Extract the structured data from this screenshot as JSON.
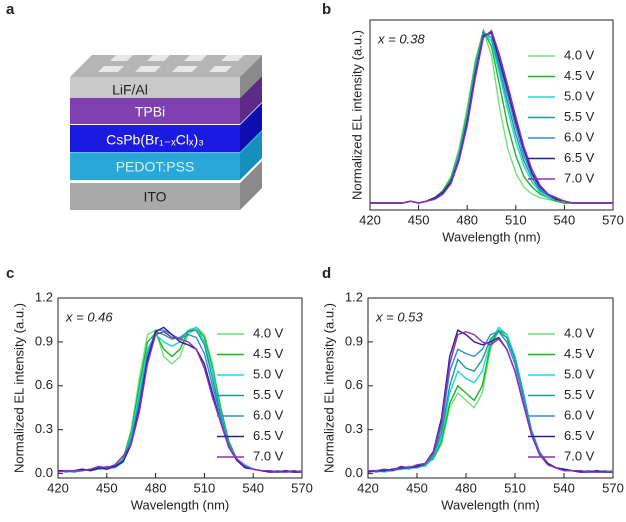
{
  "diagram": {
    "label": "a",
    "layers": [
      "LiF/Al",
      "TPBi",
      "CsPb(Br₁₋ₓClₓ)₃",
      "PEDOT:PSS",
      "ITO"
    ]
  },
  "chart_data": [
    {
      "type": "line",
      "label": "b",
      "annotation": "x = 0.38",
      "xlabel": "Wavelength (nm)",
      "ylabel": "Normalized EL intensity (a.u.)",
      "xlim": [
        420,
        570
      ],
      "xticks": [
        420,
        450,
        480,
        510,
        540,
        570
      ],
      "ylim": [
        -0.03,
        1.05
      ],
      "x": [
        420,
        425,
        430,
        435,
        440,
        445,
        450,
        455,
        460,
        465,
        470,
        475,
        480,
        485,
        490,
        495,
        500,
        505,
        510,
        515,
        520,
        525,
        530,
        535,
        540,
        545,
        550,
        555,
        560,
        565,
        570
      ],
      "series": [
        {
          "name": "4.0 V",
          "color": "#6ee07e",
          "values": [
            0.01,
            0.01,
            0.01,
            0.01,
            0.01,
            0.02,
            0.01,
            0.02,
            0.04,
            0.08,
            0.16,
            0.32,
            0.55,
            0.82,
            0.99,
            0.85,
            0.55,
            0.32,
            0.18,
            0.1,
            0.06,
            0.04,
            0.03,
            0.02,
            0.01,
            0.01,
            0.01,
            0.01,
            0.01,
            0.01,
            0.01
          ]
        },
        {
          "name": "4.5 V",
          "color": "#1fb51f",
          "values": [
            0.01,
            0.01,
            0.01,
            0.01,
            0.01,
            0.02,
            0.01,
            0.02,
            0.04,
            0.08,
            0.15,
            0.3,
            0.52,
            0.8,
            0.99,
            0.9,
            0.68,
            0.45,
            0.28,
            0.16,
            0.1,
            0.06,
            0.04,
            0.02,
            0.01,
            0.01,
            0.01,
            0.01,
            0.01,
            0.01,
            0.01
          ]
        },
        {
          "name": "5.0 V",
          "color": "#1ad8e0",
          "values": [
            0.01,
            0.01,
            0.01,
            0.01,
            0.01,
            0.02,
            0.01,
            0.02,
            0.04,
            0.07,
            0.14,
            0.29,
            0.5,
            0.78,
            0.98,
            0.93,
            0.74,
            0.54,
            0.36,
            0.22,
            0.13,
            0.07,
            0.04,
            0.03,
            0.02,
            0.01,
            0.01,
            0.01,
            0.01,
            0.01,
            0.01
          ]
        },
        {
          "name": "5.5 V",
          "color": "#1a9a9a",
          "values": [
            0.01,
            0.01,
            0.01,
            0.01,
            0.01,
            0.02,
            0.01,
            0.02,
            0.04,
            0.07,
            0.14,
            0.28,
            0.49,
            0.77,
            0.98,
            0.95,
            0.77,
            0.58,
            0.4,
            0.25,
            0.15,
            0.08,
            0.05,
            0.03,
            0.02,
            0.01,
            0.01,
            0.01,
            0.01,
            0.01,
            0.01
          ]
        },
        {
          "name": "6.0 V",
          "color": "#2f8fd0",
          "values": [
            0.01,
            0.01,
            0.01,
            0.01,
            0.01,
            0.02,
            0.01,
            0.02,
            0.04,
            0.07,
            0.13,
            0.27,
            0.48,
            0.76,
            0.97,
            0.97,
            0.8,
            0.62,
            0.44,
            0.28,
            0.17,
            0.09,
            0.05,
            0.03,
            0.02,
            0.01,
            0.01,
            0.01,
            0.01,
            0.01,
            0.01
          ]
        },
        {
          "name": "6.5 V",
          "color": "#22229a",
          "values": [
            0.01,
            0.01,
            0.01,
            0.01,
            0.01,
            0.02,
            0.01,
            0.02,
            0.04,
            0.07,
            0.13,
            0.26,
            0.47,
            0.74,
            0.96,
            0.98,
            0.82,
            0.65,
            0.47,
            0.31,
            0.18,
            0.1,
            0.06,
            0.03,
            0.02,
            0.01,
            0.01,
            0.01,
            0.01,
            0.01,
            0.01
          ]
        },
        {
          "name": "7.0 V",
          "color": "#9a2ab8",
          "values": [
            0.01,
            0.01,
            0.01,
            0.01,
            0.01,
            0.02,
            0.01,
            0.02,
            0.03,
            0.06,
            0.12,
            0.25,
            0.45,
            0.72,
            0.95,
            0.99,
            0.85,
            0.68,
            0.5,
            0.33,
            0.2,
            0.11,
            0.06,
            0.04,
            0.02,
            0.01,
            0.01,
            0.01,
            0.01,
            0.01,
            0.01
          ]
        }
      ]
    },
    {
      "type": "line",
      "label": "c",
      "annotation": "x = 0.46",
      "xlabel": "Wavelength (nm)",
      "ylabel": "Normalized EL intensity (a.u.)",
      "xlim": [
        420,
        570
      ],
      "xticks": [
        420,
        450,
        480,
        510,
        540,
        570
      ],
      "ylim": [
        -0.03,
        1.2
      ],
      "yticks": [
        {
          "value": 0,
          "label": "0.0"
        },
        0.3,
        0.6,
        0.9,
        1.2
      ],
      "x": [
        420,
        425,
        430,
        435,
        440,
        445,
        450,
        455,
        460,
        465,
        470,
        475,
        480,
        485,
        490,
        495,
        500,
        505,
        510,
        515,
        520,
        525,
        530,
        535,
        540,
        545,
        550,
        555,
        560,
        565,
        570
      ],
      "series": [
        {
          "name": "4.0 V",
          "color": "#6ee07e",
          "values": [
            0.02,
            0.01,
            0.02,
            0.03,
            0.02,
            0.04,
            0.03,
            0.05,
            0.1,
            0.3,
            0.65,
            0.95,
            0.98,
            0.8,
            0.75,
            0.8,
            0.95,
            1.0,
            0.95,
            0.75,
            0.45,
            0.22,
            0.1,
            0.05,
            0.03,
            0.02,
            0.02,
            0.01,
            0.02,
            0.01,
            0.02
          ]
        },
        {
          "name": "4.5 V",
          "color": "#1fb51f",
          "values": [
            0.02,
            0.02,
            0.01,
            0.03,
            0.02,
            0.03,
            0.04,
            0.05,
            0.1,
            0.28,
            0.6,
            0.9,
            0.96,
            0.85,
            0.8,
            0.85,
            0.97,
            1.0,
            0.93,
            0.72,
            0.45,
            0.22,
            0.1,
            0.05,
            0.03,
            0.02,
            0.01,
            0.02,
            0.01,
            0.02,
            0.01
          ]
        },
        {
          "name": "5.0 V",
          "color": "#1ad8e0",
          "values": [
            0.01,
            0.02,
            0.02,
            0.02,
            0.03,
            0.03,
            0.04,
            0.04,
            0.09,
            0.26,
            0.55,
            0.85,
            0.95,
            0.9,
            0.87,
            0.9,
            0.98,
            1.0,
            0.9,
            0.7,
            0.42,
            0.2,
            0.1,
            0.06,
            0.03,
            0.02,
            0.02,
            0.01,
            0.01,
            0.02,
            0.01
          ]
        },
        {
          "name": "5.5 V",
          "color": "#1a9a9a",
          "values": [
            0.02,
            0.01,
            0.02,
            0.03,
            0.02,
            0.04,
            0.03,
            0.05,
            0.09,
            0.24,
            0.5,
            0.82,
            0.97,
            0.95,
            0.92,
            0.93,
            0.97,
            0.98,
            0.88,
            0.65,
            0.4,
            0.2,
            0.09,
            0.05,
            0.03,
            0.02,
            0.01,
            0.02,
            0.01,
            0.01,
            0.02
          ]
        },
        {
          "name": "6.0 V",
          "color": "#2f8fd0",
          "values": [
            0.01,
            0.02,
            0.01,
            0.02,
            0.03,
            0.03,
            0.05,
            0.04,
            0.08,
            0.22,
            0.48,
            0.8,
            0.98,
            0.98,
            0.95,
            0.92,
            0.95,
            0.93,
            0.82,
            0.6,
            0.38,
            0.19,
            0.09,
            0.05,
            0.03,
            0.02,
            0.02,
            0.01,
            0.02,
            0.01,
            0.01
          ]
        },
        {
          "name": "6.5 V",
          "color": "#22229a",
          "values": [
            0.02,
            0.02,
            0.02,
            0.03,
            0.02,
            0.04,
            0.03,
            0.05,
            0.08,
            0.2,
            0.45,
            0.78,
            0.97,
            1.0,
            0.95,
            0.9,
            0.88,
            0.85,
            0.75,
            0.55,
            0.35,
            0.18,
            0.09,
            0.04,
            0.03,
            0.02,
            0.01,
            0.01,
            0.02,
            0.01,
            0.01
          ]
        },
        {
          "name": "7.0 V",
          "color": "#9a2ab8",
          "values": [
            0.01,
            0.02,
            0.02,
            0.02,
            0.03,
            0.05,
            0.04,
            0.06,
            0.12,
            0.2,
            0.42,
            0.75,
            0.95,
            0.97,
            0.93,
            0.92,
            0.9,
            0.85,
            0.72,
            0.52,
            0.35,
            0.18,
            0.1,
            0.05,
            0.03,
            0.02,
            0.02,
            0.01,
            0.01,
            0.02,
            0.01
          ]
        }
      ]
    },
    {
      "type": "line",
      "label": "d",
      "annotation": "x = 0.53",
      "xlabel": "Wavelength (nm)",
      "ylabel": "Normalized EL intensity (a.u.)",
      "xlim": [
        420,
        570
      ],
      "xticks": [
        420,
        450,
        480,
        510,
        540,
        570
      ],
      "ylim": [
        -0.03,
        1.2
      ],
      "yticks": [
        {
          "value": 0,
          "label": "0.0"
        },
        0.3,
        0.6,
        0.9,
        1.2
      ],
      "x": [
        420,
        425,
        430,
        435,
        440,
        445,
        450,
        455,
        460,
        465,
        470,
        475,
        480,
        485,
        490,
        495,
        500,
        505,
        510,
        515,
        520,
        525,
        530,
        535,
        540,
        545,
        550,
        555,
        560,
        565,
        570
      ],
      "series": [
        {
          "name": "4.0 V",
          "color": "#6ee07e",
          "values": [
            0.02,
            0.01,
            0.03,
            0.02,
            0.04,
            0.03,
            0.05,
            0.06,
            0.1,
            0.2,
            0.45,
            0.55,
            0.5,
            0.45,
            0.55,
            0.85,
            0.98,
            0.95,
            0.8,
            0.55,
            0.3,
            0.15,
            0.07,
            0.04,
            0.03,
            0.02,
            0.02,
            0.01,
            0.02,
            0.01,
            0.01
          ]
        },
        {
          "name": "4.5 V",
          "color": "#1fb51f",
          "values": [
            0.01,
            0.02,
            0.02,
            0.03,
            0.03,
            0.04,
            0.04,
            0.06,
            0.1,
            0.22,
            0.48,
            0.6,
            0.55,
            0.5,
            0.6,
            0.88,
            0.98,
            0.95,
            0.8,
            0.56,
            0.3,
            0.15,
            0.07,
            0.04,
            0.03,
            0.02,
            0.01,
            0.02,
            0.01,
            0.01,
            0.02
          ]
        },
        {
          "name": "5.0 V",
          "color": "#1ad8e0",
          "values": [
            0.02,
            0.02,
            0.01,
            0.02,
            0.04,
            0.03,
            0.05,
            0.05,
            0.11,
            0.25,
            0.55,
            0.7,
            0.65,
            0.62,
            0.7,
            0.9,
            1.0,
            0.95,
            0.8,
            0.55,
            0.3,
            0.14,
            0.07,
            0.04,
            0.02,
            0.02,
            0.01,
            0.01,
            0.02,
            0.01,
            0.01
          ]
        },
        {
          "name": "5.5 V",
          "color": "#1a9a9a",
          "values": [
            0.01,
            0.02,
            0.02,
            0.03,
            0.03,
            0.04,
            0.04,
            0.06,
            0.12,
            0.28,
            0.6,
            0.78,
            0.72,
            0.7,
            0.78,
            0.92,
            0.97,
            0.93,
            0.78,
            0.54,
            0.3,
            0.14,
            0.07,
            0.04,
            0.03,
            0.02,
            0.02,
            0.01,
            0.01,
            0.02,
            0.01
          ]
        },
        {
          "name": "6.0 V",
          "color": "#2f8fd0",
          "values": [
            0.02,
            0.01,
            0.02,
            0.02,
            0.03,
            0.05,
            0.04,
            0.07,
            0.13,
            0.32,
            0.7,
            0.85,
            0.82,
            0.8,
            0.85,
            0.95,
            0.97,
            0.9,
            0.75,
            0.52,
            0.29,
            0.14,
            0.07,
            0.04,
            0.02,
            0.02,
            0.01,
            0.02,
            0.01,
            0.01,
            0.01
          ]
        },
        {
          "name": "6.5 V",
          "color": "#22229a",
          "values": [
            0.01,
            0.02,
            0.02,
            0.03,
            0.04,
            0.04,
            0.05,
            0.07,
            0.15,
            0.38,
            0.8,
            0.98,
            0.95,
            0.9,
            0.88,
            0.9,
            0.93,
            0.85,
            0.7,
            0.48,
            0.27,
            0.13,
            0.07,
            0.04,
            0.03,
            0.02,
            0.01,
            0.01,
            0.02,
            0.01,
            0.01
          ]
        },
        {
          "name": "7.0 V",
          "color": "#9a2ab8",
          "values": [
            0.02,
            0.02,
            0.03,
            0.02,
            0.05,
            0.04,
            0.06,
            0.07,
            0.14,
            0.35,
            0.75,
            0.95,
            0.97,
            0.95,
            0.9,
            0.88,
            0.92,
            0.85,
            0.7,
            0.48,
            0.27,
            0.13,
            0.06,
            0.04,
            0.02,
            0.02,
            0.02,
            0.01,
            0.01,
            0.01,
            0.01
          ]
        }
      ]
    }
  ]
}
